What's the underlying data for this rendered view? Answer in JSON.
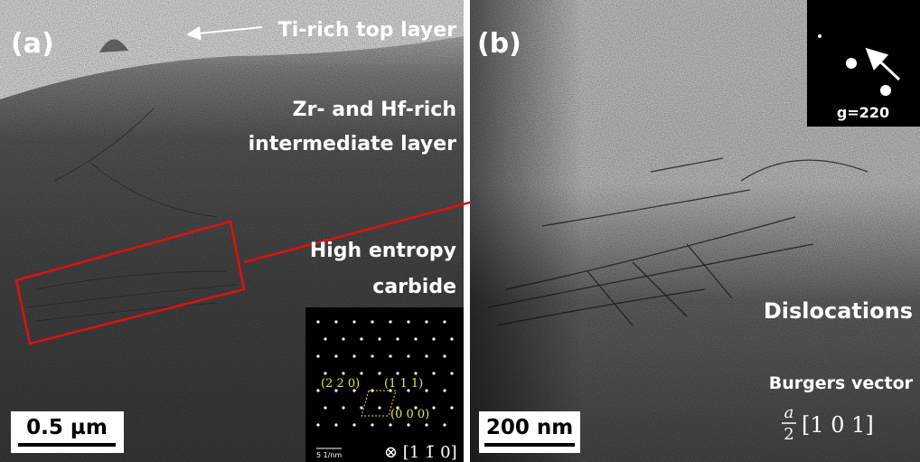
{
  "panels": [
    {
      "label": "(a)",
      "annotations": [
        {
          "lines": [
            "Ti-rich top layer"
          ]
        },
        {
          "lines": [
            "Zr- and Hf-rich",
            "intermediate layer"
          ]
        },
        {
          "lines": [
            "High entropy",
            "carbide"
          ]
        }
      ],
      "scale_bar": "0.5 µm",
      "inset": {
        "spots": [
          "(2 2 0)",
          "(1 1 1)",
          "(0 0 0)"
        ],
        "scale": "5 1/nm",
        "zone_axis": "⊗ [1 1̄ 0]"
      }
    },
    {
      "label": "(b)",
      "inset": {
        "g_vector": "g=220"
      },
      "annotations": [
        {
          "lines": [
            "Dislocations"
          ]
        },
        {
          "lines": [
            "Burgers vector"
          ]
        }
      ],
      "burgers_vector": {
        "numerator": "a",
        "denominator": "2",
        "vector": "[1 0 1]"
      },
      "scale_bar": "200 nm"
    }
  ]
}
